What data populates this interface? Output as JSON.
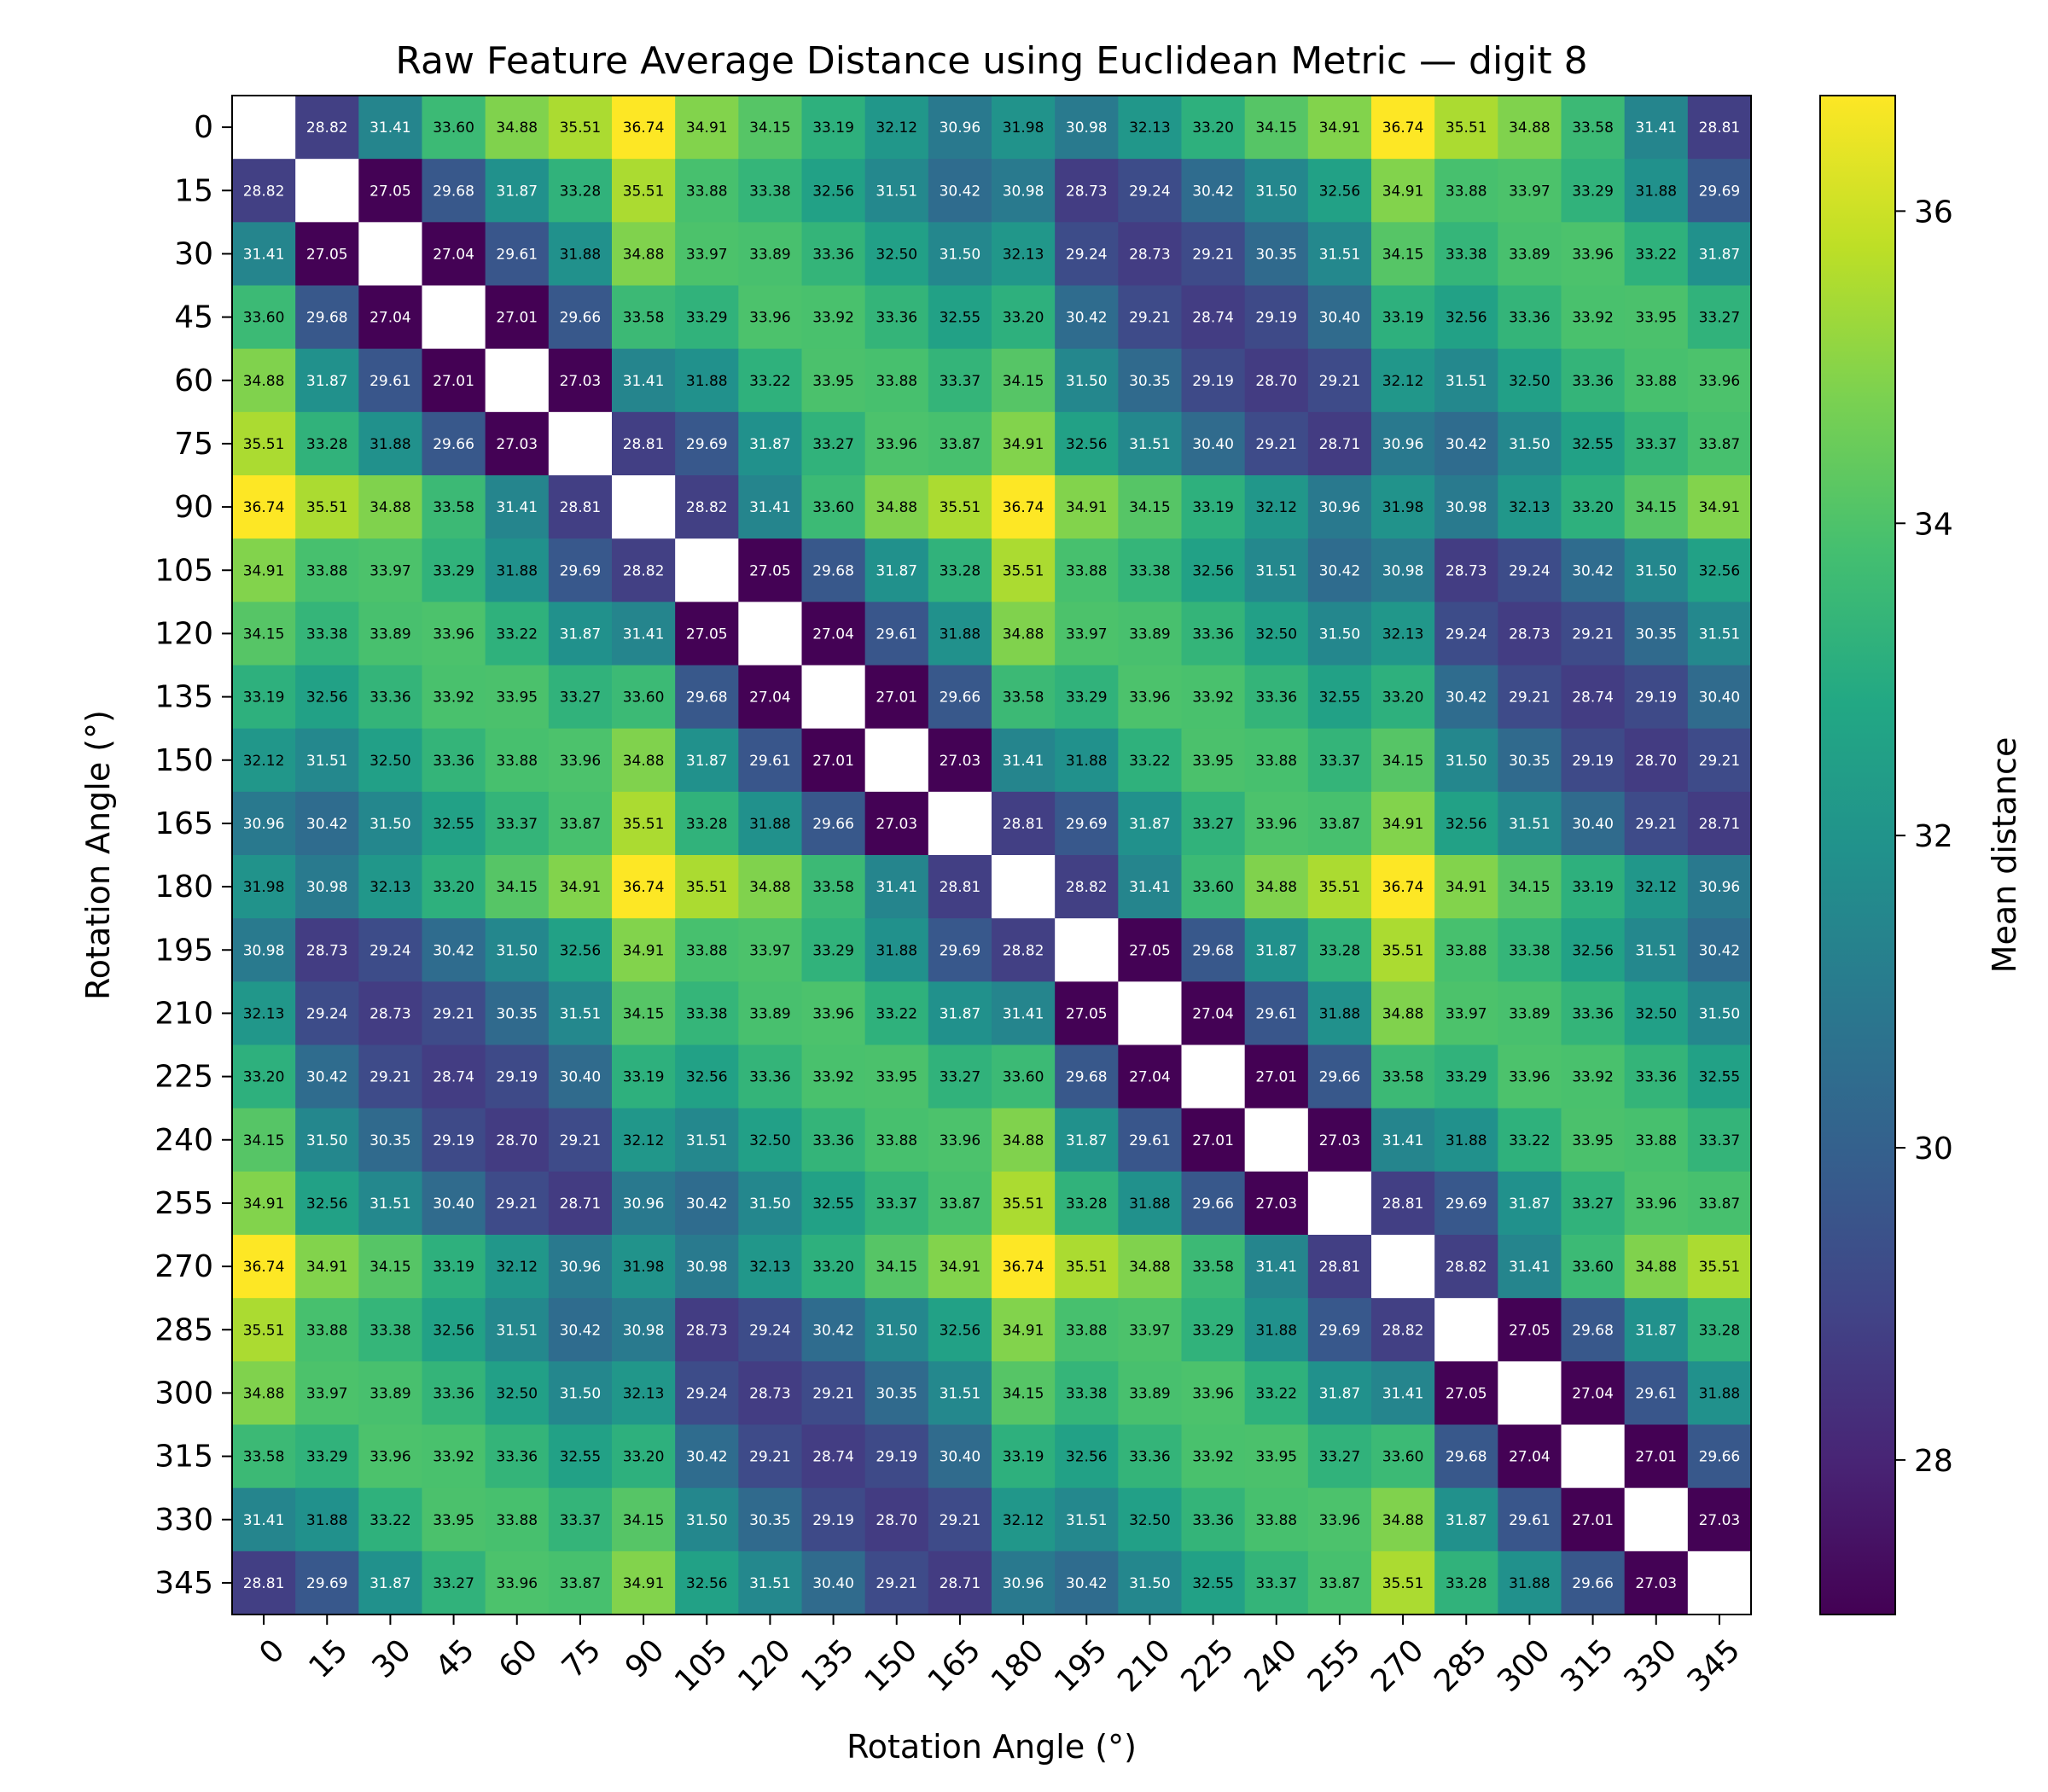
{
  "chart_data": {
    "type": "heatmap",
    "title": "Raw Feature Average Distance using Euclidean Metric — digit 8",
    "xlabel": "Rotation Angle (°)",
    "ylabel": "Rotation Angle (°)",
    "colorbar_label": "Mean distance",
    "colormap": "viridis",
    "vmin": 27.01,
    "vmax": 36.74,
    "colorbar_ticks": [
      "28",
      "30",
      "32",
      "34",
      "36"
    ],
    "diagonal": "blank",
    "x_categories": [
      "0",
      "15",
      "30",
      "45",
      "60",
      "75",
      "90",
      "105",
      "120",
      "135",
      "150",
      "165",
      "180",
      "195",
      "210",
      "225",
      "240",
      "255",
      "270",
      "285",
      "300",
      "315",
      "330",
      "345"
    ],
    "y_categories": [
      "0",
      "15",
      "30",
      "45",
      "60",
      "75",
      "90",
      "105",
      "120",
      "135",
      "150",
      "165",
      "180",
      "195",
      "210",
      "225",
      "240",
      "255",
      "270",
      "285",
      "300",
      "315",
      "330",
      "345"
    ],
    "values": [
      [
        null,
        28.82,
        31.41,
        33.6,
        34.88,
        35.51,
        36.74,
        34.91,
        34.15,
        33.19,
        32.12,
        30.96,
        31.98,
        30.98,
        32.13,
        33.2,
        34.15,
        34.91,
        36.74,
        35.51,
        34.88,
        33.58,
        31.41,
        28.81
      ],
      [
        28.82,
        null,
        27.05,
        29.68,
        31.87,
        33.28,
        35.51,
        33.88,
        33.38,
        32.56,
        31.51,
        30.42,
        30.98,
        28.73,
        29.24,
        30.42,
        31.5,
        32.56,
        34.91,
        33.88,
        33.97,
        33.29,
        31.88,
        29.69
      ],
      [
        31.41,
        27.05,
        null,
        27.04,
        29.61,
        31.88,
        34.88,
        33.97,
        33.89,
        33.36,
        32.5,
        31.5,
        32.13,
        29.24,
        28.73,
        29.21,
        30.35,
        31.51,
        34.15,
        33.38,
        33.89,
        33.96,
        33.22,
        31.87
      ],
      [
        33.6,
        29.68,
        27.04,
        null,
        27.01,
        29.66,
        33.58,
        33.29,
        33.96,
        33.92,
        33.36,
        32.55,
        33.2,
        30.42,
        29.21,
        28.74,
        29.19,
        30.4,
        33.19,
        32.56,
        33.36,
        33.92,
        33.95,
        33.27
      ],
      [
        34.88,
        31.87,
        29.61,
        27.01,
        null,
        27.03,
        31.41,
        31.88,
        33.22,
        33.95,
        33.88,
        33.37,
        34.15,
        31.5,
        30.35,
        29.19,
        28.7,
        29.21,
        32.12,
        31.51,
        32.5,
        33.36,
        33.88,
        33.96
      ],
      [
        35.51,
        33.28,
        31.88,
        29.66,
        27.03,
        null,
        28.81,
        29.69,
        31.87,
        33.27,
        33.96,
        33.87,
        34.91,
        32.56,
        31.51,
        30.4,
        29.21,
        28.71,
        30.96,
        30.42,
        31.5,
        32.55,
        33.37,
        33.87
      ],
      [
        36.74,
        35.51,
        34.88,
        33.58,
        31.41,
        28.81,
        null,
        28.82,
        31.41,
        33.6,
        34.88,
        35.51,
        36.74,
        34.91,
        34.15,
        33.19,
        32.12,
        30.96,
        31.98,
        30.98,
        32.13,
        33.2,
        34.15,
        34.91
      ],
      [
        34.91,
        33.88,
        33.97,
        33.29,
        31.88,
        29.69,
        28.82,
        null,
        27.05,
        29.68,
        31.87,
        33.28,
        35.51,
        33.88,
        33.38,
        32.56,
        31.51,
        30.42,
        30.98,
        28.73,
        29.24,
        30.42,
        31.5,
        32.56
      ],
      [
        34.15,
        33.38,
        33.89,
        33.96,
        33.22,
        31.87,
        31.41,
        27.05,
        null,
        27.04,
        29.61,
        31.88,
        34.88,
        33.97,
        33.89,
        33.36,
        32.5,
        31.5,
        32.13,
        29.24,
        28.73,
        29.21,
        30.35,
        31.51
      ],
      [
        33.19,
        32.56,
        33.36,
        33.92,
        33.95,
        33.27,
        33.6,
        29.68,
        27.04,
        null,
        27.01,
        29.66,
        33.58,
        33.29,
        33.96,
        33.92,
        33.36,
        32.55,
        33.2,
        30.42,
        29.21,
        28.74,
        29.19,
        30.4
      ],
      [
        32.12,
        31.51,
        32.5,
        33.36,
        33.88,
        33.96,
        34.88,
        31.87,
        29.61,
        27.01,
        null,
        27.03,
        31.41,
        31.88,
        33.22,
        33.95,
        33.88,
        33.37,
        34.15,
        31.5,
        30.35,
        29.19,
        28.7,
        29.21
      ],
      [
        30.96,
        30.42,
        31.5,
        32.55,
        33.37,
        33.87,
        35.51,
        33.28,
        31.88,
        29.66,
        27.03,
        null,
        28.81,
        29.69,
        31.87,
        33.27,
        33.96,
        33.87,
        34.91,
        32.56,
        31.51,
        30.4,
        29.21,
        28.71
      ],
      [
        31.98,
        30.98,
        32.13,
        33.2,
        34.15,
        34.91,
        36.74,
        35.51,
        34.88,
        33.58,
        31.41,
        28.81,
        null,
        28.82,
        31.41,
        33.6,
        34.88,
        35.51,
        36.74,
        34.91,
        34.15,
        33.19,
        32.12,
        30.96
      ],
      [
        30.98,
        28.73,
        29.24,
        30.42,
        31.5,
        32.56,
        34.91,
        33.88,
        33.97,
        33.29,
        31.88,
        29.69,
        28.82,
        null,
        27.05,
        29.68,
        31.87,
        33.28,
        35.51,
        33.88,
        33.38,
        32.56,
        31.51,
        30.42
      ],
      [
        32.13,
        29.24,
        28.73,
        29.21,
        30.35,
        31.51,
        34.15,
        33.38,
        33.89,
        33.96,
        33.22,
        31.87,
        31.41,
        27.05,
        null,
        27.04,
        29.61,
        31.88,
        34.88,
        33.97,
        33.89,
        33.36,
        32.5,
        31.5
      ],
      [
        33.2,
        30.42,
        29.21,
        28.74,
        29.19,
        30.4,
        33.19,
        32.56,
        33.36,
        33.92,
        33.95,
        33.27,
        33.6,
        29.68,
        27.04,
        null,
        27.01,
        29.66,
        33.58,
        33.29,
        33.96,
        33.92,
        33.36,
        32.55
      ],
      [
        34.15,
        31.5,
        30.35,
        29.19,
        28.7,
        29.21,
        32.12,
        31.51,
        32.5,
        33.36,
        33.88,
        33.96,
        34.88,
        31.87,
        29.61,
        27.01,
        null,
        27.03,
        31.41,
        31.88,
        33.22,
        33.95,
        33.88,
        33.37
      ],
      [
        34.91,
        32.56,
        31.51,
        30.4,
        29.21,
        28.71,
        30.96,
        30.42,
        31.5,
        32.55,
        33.37,
        33.87,
        35.51,
        33.28,
        31.88,
        29.66,
        27.03,
        null,
        28.81,
        29.69,
        31.87,
        33.27,
        33.96,
        33.87
      ],
      [
        36.74,
        34.91,
        34.15,
        33.19,
        32.12,
        30.96,
        31.98,
        30.98,
        32.13,
        33.2,
        34.15,
        34.91,
        36.74,
        35.51,
        34.88,
        33.58,
        31.41,
        28.81,
        null,
        28.82,
        31.41,
        33.6,
        34.88,
        35.51
      ],
      [
        35.51,
        33.88,
        33.38,
        32.56,
        31.51,
        30.42,
        30.98,
        28.73,
        29.24,
        30.42,
        31.5,
        32.56,
        34.91,
        33.88,
        33.97,
        33.29,
        31.88,
        29.69,
        28.82,
        null,
        27.05,
        29.68,
        31.87,
        33.28
      ],
      [
        34.88,
        33.97,
        33.89,
        33.36,
        32.5,
        31.5,
        32.13,
        29.24,
        28.73,
        29.21,
        30.35,
        31.51,
        34.15,
        33.38,
        33.89,
        33.96,
        33.22,
        31.87,
        31.41,
        27.05,
        null,
        27.04,
        29.61,
        31.88
      ],
      [
        33.58,
        33.29,
        33.96,
        33.92,
        33.36,
        32.55,
        33.2,
        30.42,
        29.21,
        28.74,
        29.19,
        30.4,
        33.19,
        32.56,
        33.36,
        33.92,
        33.95,
        33.27,
        33.6,
        29.68,
        27.04,
        null,
        27.01,
        29.66
      ],
      [
        31.41,
        31.88,
        33.22,
        33.95,
        33.88,
        33.37,
        34.15,
        31.5,
        30.35,
        29.19,
        28.7,
        29.21,
        32.12,
        31.51,
        32.5,
        33.36,
        33.88,
        33.96,
        34.88,
        31.87,
        29.61,
        27.01,
        null,
        27.03
      ],
      [
        28.81,
        29.69,
        31.87,
        33.27,
        33.96,
        33.87,
        34.91,
        32.56,
        31.51,
        30.4,
        29.21,
        28.71,
        30.96,
        30.42,
        31.5,
        32.55,
        33.37,
        33.87,
        35.51,
        33.28,
        31.88,
        29.66,
        27.03,
        null
      ]
    ]
  }
}
